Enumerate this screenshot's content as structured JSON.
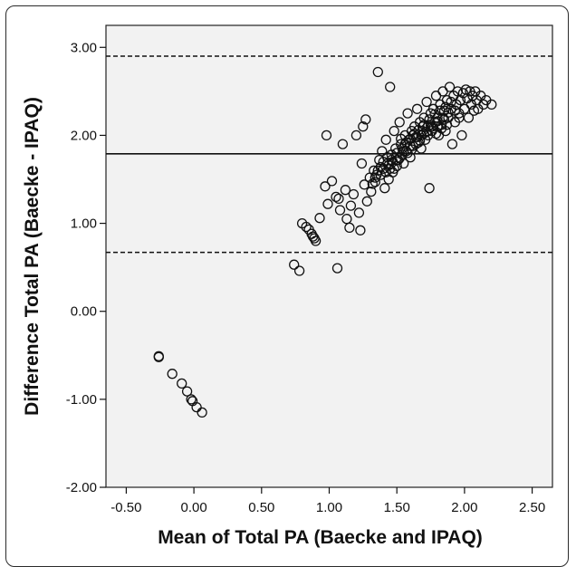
{
  "chart_data": {
    "type": "scatter",
    "xlabel": "Mean of Total PA (Baecke and IPAQ)",
    "ylabel": "Difference Total PA (Baecke - IPAQ)",
    "xlim": [
      -0.65,
      2.65
    ],
    "ylim": [
      -2.0,
      3.25
    ],
    "x_ticks": [
      "-0.50",
      "0.00",
      "0.50",
      "1.00",
      "1.50",
      "2.00",
      "2.50"
    ],
    "y_ticks": [
      "3.00",
      "2.00",
      "1.00",
      "0.00",
      "-1.00",
      "-2.00"
    ],
    "grid": false,
    "plot_background": "#f2f2f2",
    "marker": "open-circle",
    "reference_lines": [
      {
        "kind": "mean-difference",
        "y": 1.79,
        "style": "solid"
      },
      {
        "kind": "upper-limit-of-agreement",
        "y": 2.9,
        "style": "dashed"
      },
      {
        "kind": "lower-limit-of-agreement",
        "y": 0.67,
        "style": "dashed"
      }
    ],
    "points": [
      [
        -0.26,
        -0.51
      ],
      [
        -0.26,
        -0.52
      ],
      [
        -0.16,
        -0.71
      ],
      [
        -0.09,
        -0.82
      ],
      [
        -0.05,
        -0.91
      ],
      [
        -0.02,
        -1.0
      ],
      [
        -0.01,
        -1.02
      ],
      [
        0.02,
        -1.09
      ],
      [
        0.06,
        -1.15
      ],
      [
        0.74,
        0.53
      ],
      [
        0.78,
        0.46
      ],
      [
        0.8,
        1.0
      ],
      [
        0.83,
        0.96
      ],
      [
        0.85,
        0.93
      ],
      [
        0.87,
        0.88
      ],
      [
        0.88,
        0.85
      ],
      [
        0.89,
        0.83
      ],
      [
        0.9,
        0.8
      ],
      [
        0.93,
        1.06
      ],
      [
        0.97,
        1.42
      ],
      [
        0.98,
        2.0
      ],
      [
        0.99,
        1.22
      ],
      [
        1.02,
        1.48
      ],
      [
        1.05,
        1.3
      ],
      [
        1.06,
        0.49
      ],
      [
        1.07,
        1.28
      ],
      [
        1.08,
        1.15
      ],
      [
        1.1,
        1.9
      ],
      [
        1.12,
        1.38
      ],
      [
        1.13,
        1.05
      ],
      [
        1.15,
        0.95
      ],
      [
        1.16,
        1.2
      ],
      [
        1.18,
        1.33
      ],
      [
        1.2,
        2.0
      ],
      [
        1.22,
        1.12
      ],
      [
        1.23,
        0.92
      ],
      [
        1.24,
        1.68
      ],
      [
        1.25,
        2.1
      ],
      [
        1.26,
        1.44
      ],
      [
        1.27,
        2.18
      ],
      [
        1.28,
        1.25
      ],
      [
        1.3,
        1.52
      ],
      [
        1.31,
        1.36
      ],
      [
        1.33,
        1.6
      ],
      [
        1.34,
        1.47
      ],
      [
        1.36,
        2.72
      ],
      [
        1.37,
        1.72
      ],
      [
        1.38,
        1.55
      ],
      [
        1.39,
        1.82
      ],
      [
        1.4,
        1.62
      ],
      [
        1.41,
        1.4
      ],
      [
        1.42,
        1.95
      ],
      [
        1.43,
        1.68
      ],
      [
        1.44,
        1.5
      ],
      [
        1.45,
        2.55
      ],
      [
        1.46,
        1.78
      ],
      [
        1.47,
        1.58
      ],
      [
        1.48,
        2.05
      ],
      [
        1.49,
        1.85
      ],
      [
        1.5,
        1.65
      ],
      [
        1.51,
        1.72
      ],
      [
        1.52,
        2.15
      ],
      [
        1.53,
        1.9
      ],
      [
        1.54,
        1.78
      ],
      [
        1.55,
        1.68
      ],
      [
        1.56,
        2.0
      ],
      [
        1.57,
        1.82
      ],
      [
        1.58,
        2.25
      ],
      [
        1.59,
        1.95
      ],
      [
        1.6,
        1.75
      ],
      [
        1.61,
        2.05
      ],
      [
        1.62,
        1.88
      ],
      [
        1.63,
        2.1
      ],
      [
        1.64,
        1.98
      ],
      [
        1.65,
        2.3
      ],
      [
        1.66,
        1.92
      ],
      [
        1.67,
        2.15
      ],
      [
        1.68,
        1.85
      ],
      [
        1.69,
        2.05
      ],
      [
        1.7,
        2.2
      ],
      [
        1.71,
        1.95
      ],
      [
        1.72,
        2.38
      ],
      [
        1.73,
        2.1
      ],
      [
        1.74,
        1.4
      ],
      [
        1.75,
        2.25
      ],
      [
        1.76,
        2.05
      ],
      [
        1.77,
        2.3
      ],
      [
        1.78,
        2.15
      ],
      [
        1.79,
        2.45
      ],
      [
        1.8,
        2.2
      ],
      [
        1.81,
        2.0
      ],
      [
        1.82,
        2.35
      ],
      [
        1.83,
        2.12
      ],
      [
        1.84,
        2.5
      ],
      [
        1.85,
        2.28
      ],
      [
        1.86,
        2.05
      ],
      [
        1.87,
        2.4
      ],
      [
        1.88,
        2.2
      ],
      [
        1.89,
        2.55
      ],
      [
        1.9,
        2.3
      ],
      [
        1.91,
        1.9
      ],
      [
        1.92,
        2.45
      ],
      [
        1.93,
        2.15
      ],
      [
        1.94,
        2.35
      ],
      [
        1.95,
        2.5
      ],
      [
        1.96,
        2.25
      ],
      [
        1.97,
        2.4
      ],
      [
        1.98,
        2.0
      ],
      [
        1.99,
        2.48
      ],
      [
        2.0,
        2.3
      ],
      [
        2.01,
        2.52
      ],
      [
        2.02,
        2.42
      ],
      [
        2.03,
        2.2
      ],
      [
        2.04,
        2.5
      ],
      [
        2.05,
        2.35
      ],
      [
        2.06,
        2.45
      ],
      [
        2.07,
        2.28
      ],
      [
        2.08,
        2.5
      ],
      [
        2.09,
        2.4
      ],
      [
        2.1,
        2.3
      ],
      [
        2.12,
        2.45
      ],
      [
        2.14,
        2.35
      ],
      [
        2.16,
        2.4
      ],
      [
        2.2,
        2.35
      ],
      [
        1.35,
        1.55
      ],
      [
        1.36,
        1.6
      ],
      [
        1.4,
        1.7
      ],
      [
        1.42,
        1.58
      ],
      [
        1.44,
        1.66
      ],
      [
        1.46,
        1.72
      ],
      [
        1.48,
        1.62
      ],
      [
        1.5,
        1.8
      ],
      [
        1.52,
        1.74
      ],
      [
        1.54,
        1.85
      ],
      [
        1.56,
        1.9
      ],
      [
        1.58,
        1.8
      ],
      [
        1.6,
        1.96
      ],
      [
        1.62,
        2.0
      ],
      [
        1.64,
        1.9
      ],
      [
        1.66,
        2.06
      ],
      [
        1.68,
        2.0
      ],
      [
        1.7,
        2.12
      ],
      [
        1.72,
        2.04
      ],
      [
        1.74,
        2.18
      ],
      [
        1.76,
        2.1
      ],
      [
        1.78,
        2.24
      ],
      [
        1.8,
        2.16
      ],
      [
        1.82,
        2.28
      ],
      [
        1.84,
        2.2
      ],
      [
        1.86,
        2.32
      ],
      [
        1.88,
        2.26
      ],
      [
        1.9,
        2.38
      ],
      [
        1.45,
        1.62
      ],
      [
        1.5,
        1.72
      ],
      [
        1.55,
        1.82
      ],
      [
        1.6,
        1.88
      ],
      [
        1.65,
        1.98
      ],
      [
        1.7,
        2.02
      ],
      [
        1.75,
        2.12
      ],
      [
        1.8,
        2.1
      ],
      [
        1.85,
        2.18
      ],
      [
        1.32,
        1.45
      ],
      [
        1.34,
        1.52
      ],
      [
        1.38,
        1.64
      ],
      [
        1.43,
        1.75
      ],
      [
        1.47,
        1.7
      ],
      [
        1.53,
        1.96
      ],
      [
        1.57,
        1.92
      ],
      [
        1.61,
        1.84
      ],
      [
        1.63,
        2.02
      ],
      [
        1.67,
        1.94
      ],
      [
        1.69,
        2.1
      ],
      [
        1.73,
        2.0
      ],
      [
        1.77,
        2.08
      ],
      [
        1.79,
        2.02
      ],
      [
        1.83,
        2.08
      ],
      [
        1.87,
        2.12
      ],
      [
        1.93,
        2.28
      ],
      [
        1.96,
        2.2
      ]
    ]
  }
}
